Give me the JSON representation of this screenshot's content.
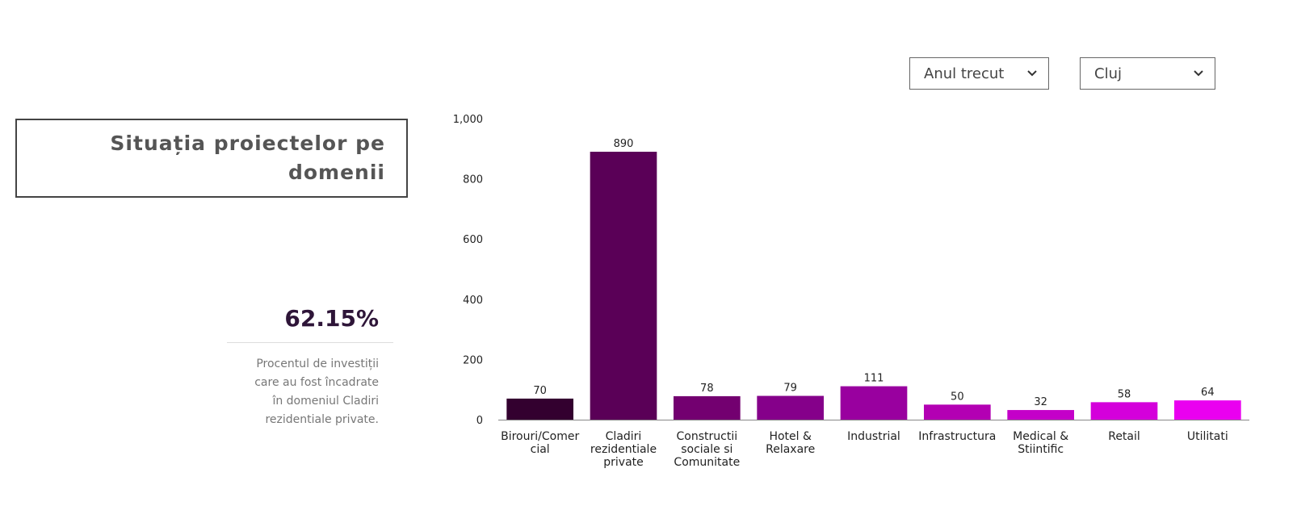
{
  "panel": {
    "title": "Situația proiectelor pe domenii",
    "stat_value": "62.15%",
    "stat_description": "Procentul de investiții care au fost încadrate în domeniul Cladiri rezidentiale private."
  },
  "filters": {
    "period": "Anul trecut",
    "region": "Cluj"
  },
  "icons": {
    "dropdown": "chevron-down-icon"
  },
  "chart_data": {
    "type": "bar",
    "categories": [
      "Birouri/Comercial",
      "Cladiri rezidentiale private",
      "Constructii sociale si Comunitate",
      "Hotel & Relaxare",
      "Industrial",
      "Infrastructura",
      "Medical & Stiintific",
      "Retail",
      "Utilitati"
    ],
    "category_lines": [
      [
        "Birouri/Comer",
        "cial"
      ],
      [
        "Cladiri",
        "rezidentiale",
        "private"
      ],
      [
        "Constructii",
        "sociale si",
        "Comunitate"
      ],
      [
        "Hotel &",
        "Relaxare"
      ],
      [
        "Industrial"
      ],
      [
        "Infrastructura"
      ],
      [
        "Medical &",
        "Stiintific"
      ],
      [
        "Retail"
      ],
      [
        "Utilitati"
      ]
    ],
    "values": [
      70,
      890,
      78,
      79,
      111,
      50,
      32,
      58,
      64
    ],
    "data_labels": [
      "70",
      "890",
      "78",
      "79",
      "111",
      "50",
      "32",
      "58",
      "64"
    ],
    "colors": [
      "#33002f",
      "#5a0057",
      "#730070",
      "#85008a",
      "#99009f",
      "#b300b3",
      "#c400c9",
      "#d400db",
      "#ea00f0"
    ],
    "yticks": [
      0,
      200,
      400,
      600,
      800,
      1000
    ],
    "ytick_labels": [
      "0",
      "200",
      "400",
      "600",
      "800",
      "1,000"
    ],
    "ylim": [
      0,
      1000
    ],
    "title": "",
    "xlabel": "",
    "ylabel": "",
    "grid": false,
    "legend": "none"
  }
}
